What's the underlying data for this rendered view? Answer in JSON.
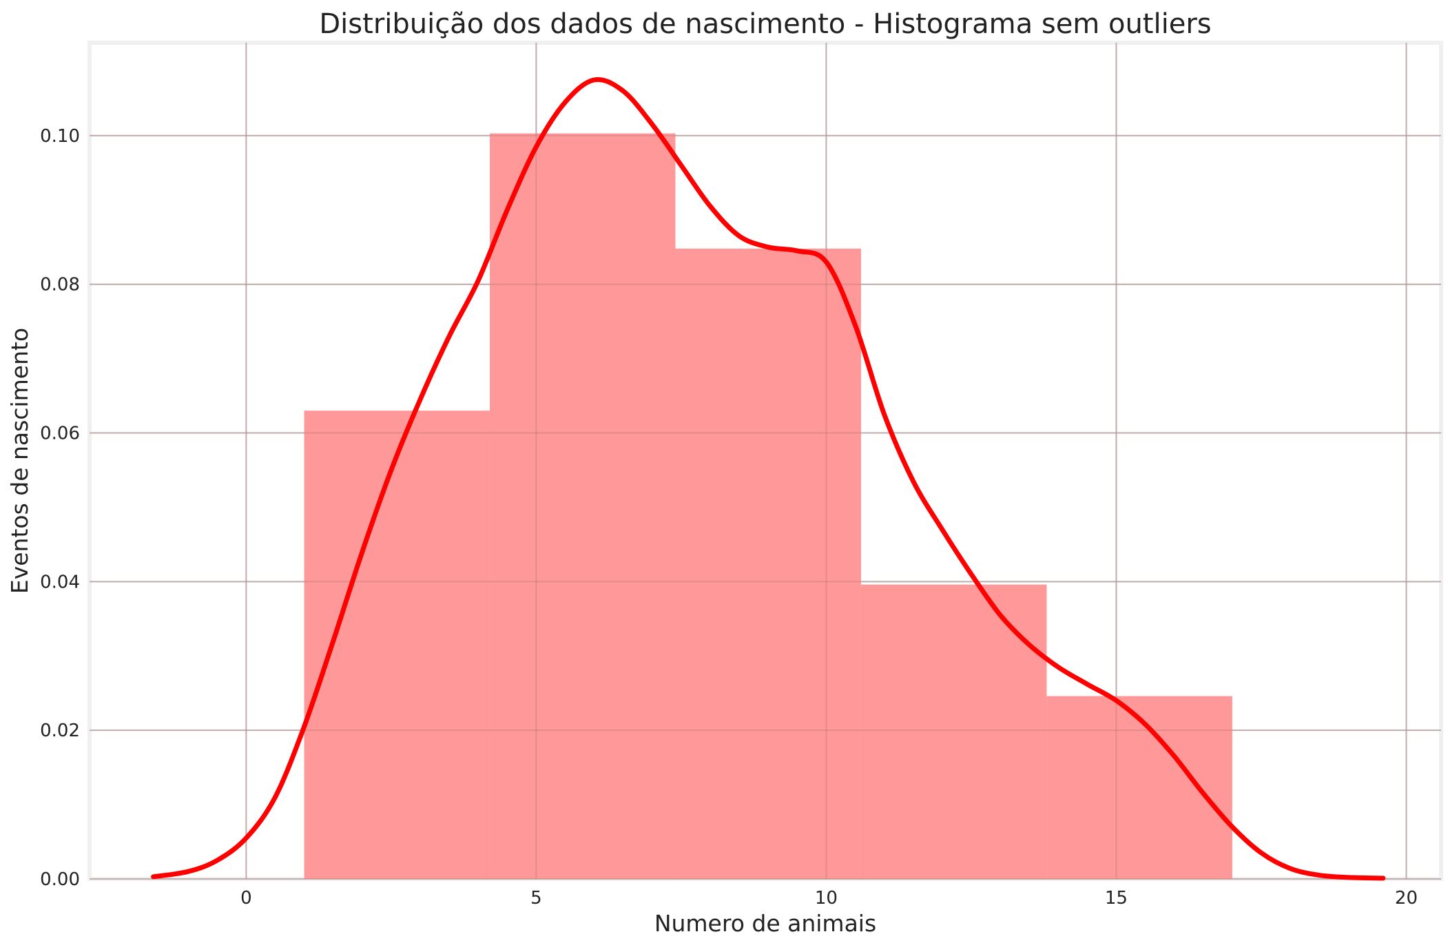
{
  "chart_data": {
    "type": "bar",
    "title": "Distribuição dos dados de nascimento - Histograma sem outliers",
    "xlabel": "Numero de animais",
    "ylabel": "Eventos de nascimento",
    "xlim": [
      -2.7,
      20.6
    ],
    "ylim": [
      0,
      0.1125
    ],
    "grid": true,
    "x_ticks": [
      0,
      5,
      10,
      15,
      20
    ],
    "y_ticks": [
      0.0,
      0.02,
      0.04,
      0.06,
      0.08,
      0.1
    ],
    "x_tick_labels": [
      "0",
      "5",
      "10",
      "15",
      "20"
    ],
    "y_tick_labels": [
      "0.00",
      "0.02",
      "0.04",
      "0.06",
      "0.08",
      "0.10"
    ],
    "bins": [
      {
        "x0": 1.0,
        "x1": 4.2,
        "value": 0.063
      },
      {
        "x0": 4.2,
        "x1": 7.4,
        "value": 0.1003
      },
      {
        "x0": 7.4,
        "x1": 10.6,
        "value": 0.0848
      },
      {
        "x0": 10.6,
        "x1": 13.8,
        "value": 0.0396
      },
      {
        "x0": 13.8,
        "x1": 17.0,
        "value": 0.0246
      }
    ],
    "kde": {
      "x": [
        -1.6,
        -1.0,
        -0.5,
        0.0,
        0.5,
        1.0,
        1.5,
        2.0,
        2.5,
        3.0,
        3.5,
        4.0,
        4.5,
        5.0,
        5.5,
        6.0,
        6.5,
        7.0,
        7.5,
        8.0,
        8.5,
        9.0,
        9.5,
        10.0,
        10.5,
        11.0,
        11.5,
        12.0,
        12.5,
        13.0,
        13.5,
        14.0,
        14.5,
        15.0,
        15.5,
        16.0,
        16.5,
        17.0,
        17.5,
        18.0,
        18.5,
        19.0,
        19.6
      ],
      "y": [
        0.0003,
        0.001,
        0.0025,
        0.0055,
        0.011,
        0.0205,
        0.032,
        0.044,
        0.055,
        0.0645,
        0.073,
        0.0805,
        0.09,
        0.0985,
        0.1045,
        0.1075,
        0.106,
        0.1015,
        0.096,
        0.0905,
        0.0865,
        0.085,
        0.0845,
        0.083,
        0.0745,
        0.0625,
        0.0535,
        0.047,
        0.041,
        0.0355,
        0.0315,
        0.0285,
        0.0262,
        0.024,
        0.0208,
        0.0165,
        0.0115,
        0.007,
        0.0035,
        0.0014,
        0.0005,
        0.0002,
        0.0001
      ]
    }
  },
  "colors": {
    "bar_fill": "#ff9999",
    "kde_line": "#ff0000",
    "grid": "#cccccc",
    "frame": "#f0f0f0",
    "text": "#222222"
  }
}
